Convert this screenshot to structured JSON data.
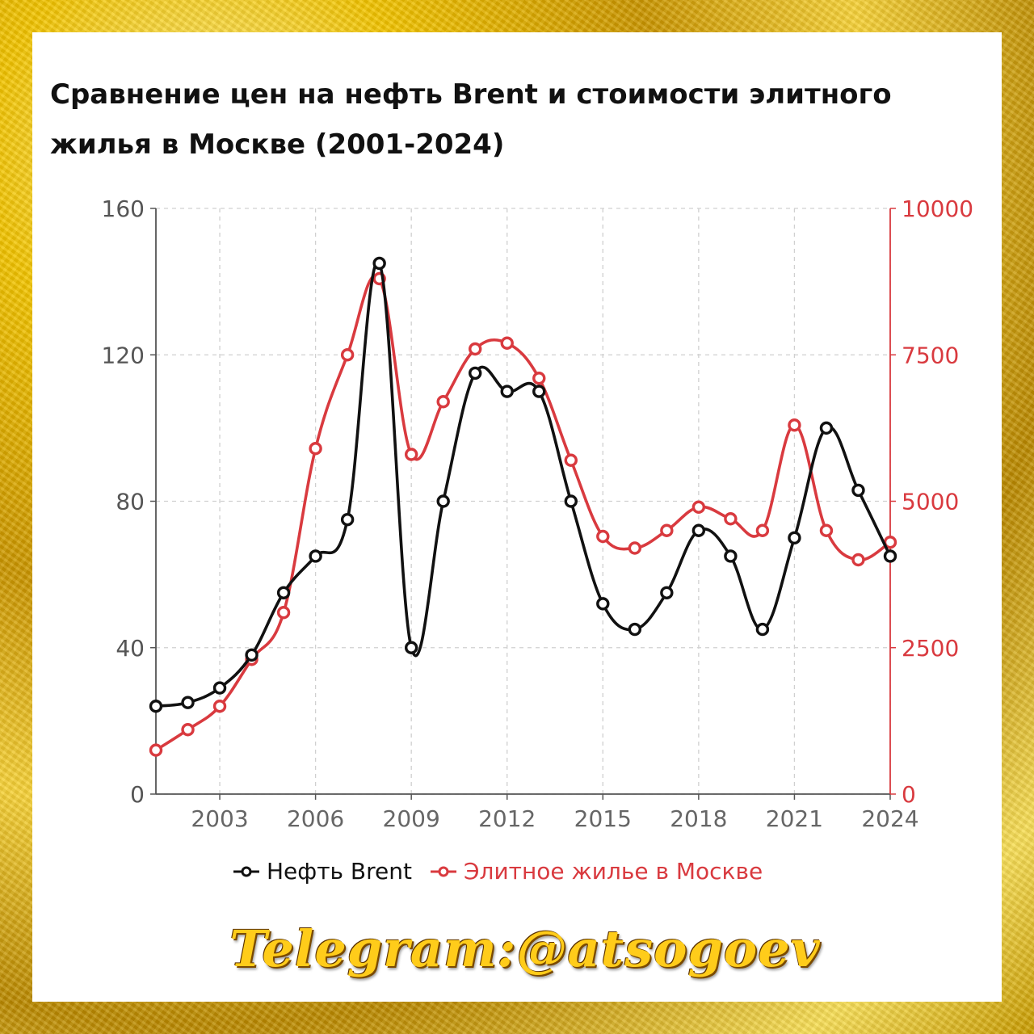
{
  "title": "Сравнение цен на нефть Brent и стоимости элитного жилья в Москве (2001-2024)",
  "watermark": "Telegram:@atsogoev",
  "colors": {
    "oil": "#111111",
    "housing": "#d93a3f",
    "grid": "#d0d0d0",
    "axis": "#555555"
  },
  "chart_data": {
    "type": "line",
    "title": "Сравнение цен на нефть Brent и стоимости элитного жилья в Москве (2001-2024)",
    "x": [
      2001,
      2002,
      2003,
      2004,
      2005,
      2006,
      2007,
      2008,
      2009,
      2010,
      2011,
      2012,
      2013,
      2014,
      2015,
      2016,
      2017,
      2018,
      2019,
      2020,
      2021,
      2022,
      2023,
      2024
    ],
    "xlim": [
      2001,
      2024
    ],
    "x_ticks": [
      "2003",
      "2006",
      "2009",
      "2012",
      "2015",
      "2018",
      "2021",
      "2024"
    ],
    "y_left": {
      "lim": [
        0,
        160
      ],
      "ticks": [
        "0",
        "40",
        "80",
        "120",
        "160"
      ]
    },
    "y_right": {
      "lim": [
        0,
        10000
      ],
      "ticks": [
        "0",
        "2500",
        "5000",
        "7500",
        "10000"
      ]
    },
    "grid": true,
    "legend_position": "bottom-center",
    "series": [
      {
        "name": "Нефть Brent",
        "axis": "left",
        "values": [
          24,
          25,
          29,
          38,
          55,
          65,
          75,
          145,
          40,
          80,
          115,
          110,
          110,
          80,
          52,
          45,
          55,
          72,
          65,
          45,
          70,
          100,
          83,
          65
        ]
      },
      {
        "name": "Элитное жилье в Москве",
        "axis": "right",
        "values": [
          750,
          1100,
          1500,
          2300,
          3100,
          5900,
          7500,
          8800,
          5800,
          6700,
          7600,
          7700,
          7100,
          5700,
          4400,
          4200,
          4500,
          4900,
          4700,
          4500,
          6300,
          4500,
          4000,
          4300
        ]
      }
    ]
  }
}
